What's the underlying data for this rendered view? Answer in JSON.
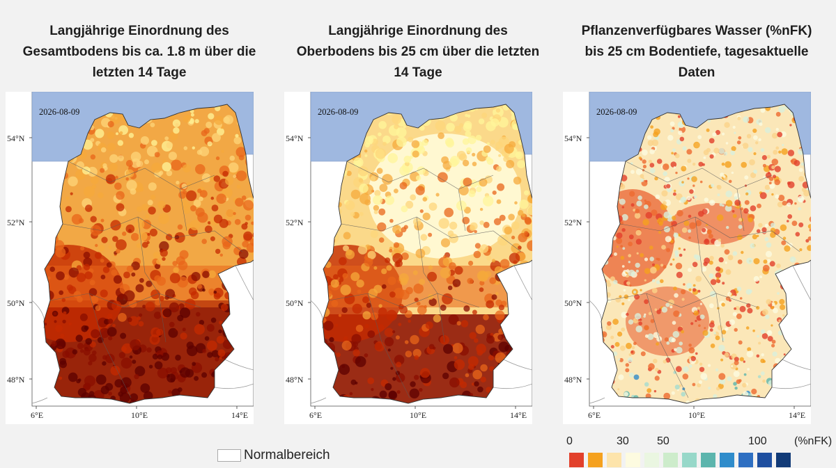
{
  "panels": [
    {
      "title_lines": [
        "Langjährige Einordnung des",
        "Gesamtbodens bis ca. 1.8 m über die",
        "letzten 14 Tage"
      ],
      "date": "2026-08-09",
      "lat_labels": [
        "54°N",
        "52°N",
        "50°N",
        "48°N"
      ],
      "lon_labels": [
        "6°E",
        "10°E",
        "14°E"
      ]
    },
    {
      "title_lines": [
        "Langjährige Einordnung des",
        "Oberbodens bis 25 cm über die letzten",
        "14 Tage"
      ],
      "date": "2026-08-09",
      "lat_labels": [
        "54°N",
        "52°N",
        "50°N",
        "48°N"
      ],
      "lon_labels": [
        "6°E",
        "10°E",
        "14°E"
      ]
    },
    {
      "title_lines": [
        "Pflanzenverfügbares Wasser (%nFK)",
        "bis 25 cm Bodentiefe, tagesaktuelle",
        "Daten"
      ],
      "date": "2026-08-09",
      "lat_labels": [
        "54°N",
        "52°N",
        "50°N",
        "48°N"
      ],
      "lon_labels": [
        "6°E",
        "10°E",
        "14°E"
      ]
    }
  ],
  "legend": {
    "normal_label": "Normalbereich",
    "colorbar_ticks": [
      "0",
      "30",
      "50",
      "100",
      "(%nFK)"
    ],
    "colorbar_colors": [
      "#e2402b",
      "#f5a11e",
      "#fde4ab",
      "#fdfbe0",
      "#eaf6e1",
      "#cdeccb",
      "#97d8c9",
      "#5cb5ad",
      "#2f8ccb",
      "#2e6fc2",
      "#1e4fa0",
      "#123b78"
    ]
  },
  "colors": {
    "sea": "#9fb8e0",
    "drought_scale": [
      "#5c0000",
      "#8a0d00",
      "#c42a00",
      "#e8651a",
      "#f6a93b",
      "#fdd67a",
      "#fff59a"
    ]
  }
}
